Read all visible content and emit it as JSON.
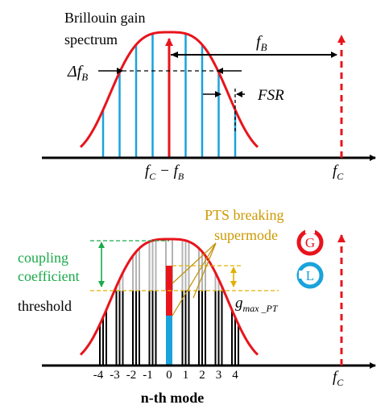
{
  "colors": {
    "axis": "#000000",
    "gain_curve": "#e8141b",
    "mode_line": "#1aa3db",
    "pump_line": "#e8141b",
    "threshold_fill": "#000000",
    "above_threshold": "#b3b3b3",
    "pts_label": "#cc9900",
    "coupling_label": "#1aaa4a",
    "gain_badge": "#e8141b",
    "loss_badge": "#1aa3db"
  },
  "top_panel": {
    "title_line1": "Brillouin gain",
    "title_line2": "spectrum",
    "fb_label": "f",
    "fb_sub": "B",
    "delta_label": "Δf",
    "delta_sub": "B",
    "fsr_label": "FSR",
    "center_label_f": "f",
    "center_label_c": "C",
    "center_label_minus": " − f",
    "center_label_b": "B",
    "fc_label": "f",
    "fc_sub": "C"
  },
  "bottom_panel": {
    "pts_line1": "PTS breaking",
    "pts_line2": "supermode",
    "coupling_line1": "coupling",
    "coupling_line2": "coefficient",
    "threshold_label": "threshold",
    "gmax_label": "g",
    "gmax_sub": "max _PT",
    "gain_badge_letter": "G",
    "loss_badge_letter": "L",
    "fc_label": "f",
    "fc_sub": "C",
    "mode_ticks": [
      "-4",
      "-3",
      "-2",
      "-1",
      "0",
      "1",
      "2",
      "3",
      "4"
    ],
    "xlabel": "n-th mode"
  }
}
